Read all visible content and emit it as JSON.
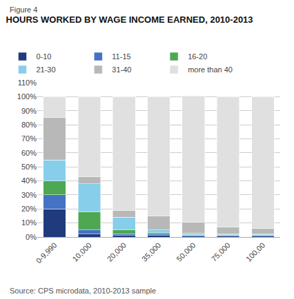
{
  "chart_data": {
    "type": "bar",
    "stacked": true,
    "title": "HOURS WORKED BY WAGE INCOME EARNED, 2010-2013",
    "annotations": [
      "Figure 4",
      "Source: CPS microdata, 2010-2013 sample"
    ],
    "categories": [
      "0-9,990",
      "10,000",
      "20,000",
      "35,000",
      "50,000",
      "75,000",
      "100,00"
    ],
    "series": [
      {
        "name": "0-10",
        "color": "#1f3a7d",
        "values": [
          20,
          2,
          1,
          1,
          0.5,
          0.5,
          0.5
        ]
      },
      {
        "name": "11-15",
        "color": "#4472c4",
        "values": [
          10,
          3,
          1,
          1,
          0.5,
          0.5,
          0.5
        ]
      },
      {
        "name": "16-20",
        "color": "#4ea753",
        "values": [
          10,
          13,
          3,
          1,
          0.5,
          0.5,
          0.5
        ]
      },
      {
        "name": "21-30",
        "color": "#87ceeb",
        "values": [
          15,
          20,
          9,
          2,
          1,
          0.5,
          0.5
        ]
      },
      {
        "name": "31-40",
        "color": "#b8b8b8",
        "values": [
          30,
          5,
          5,
          10,
          8,
          5,
          4
        ]
      },
      {
        "name": "more than 40",
        "color": "#e0e0e0",
        "values": [
          15,
          57,
          81,
          85,
          90,
          93,
          94
        ]
      }
    ],
    "ylim": [
      0,
      110
    ],
    "yticks": [
      {
        "value": 0,
        "label": "0%"
      },
      {
        "value": 10,
        "label": "10%"
      },
      {
        "value": 20,
        "label": "20%"
      },
      {
        "value": 30,
        "label": "30%"
      },
      {
        "value": 40,
        "label": "40%"
      },
      {
        "value": 50,
        "label": "50%"
      },
      {
        "value": 60,
        "label": "60%"
      },
      {
        "value": 70,
        "label": "70%"
      },
      {
        "value": 80,
        "label": "80%"
      },
      {
        "value": 90,
        "label": "90%"
      },
      {
        "value": 100,
        "label": "100%"
      },
      {
        "value": 110,
        "label": "110%"
      }
    ],
    "grid": true,
    "legend": "top"
  }
}
